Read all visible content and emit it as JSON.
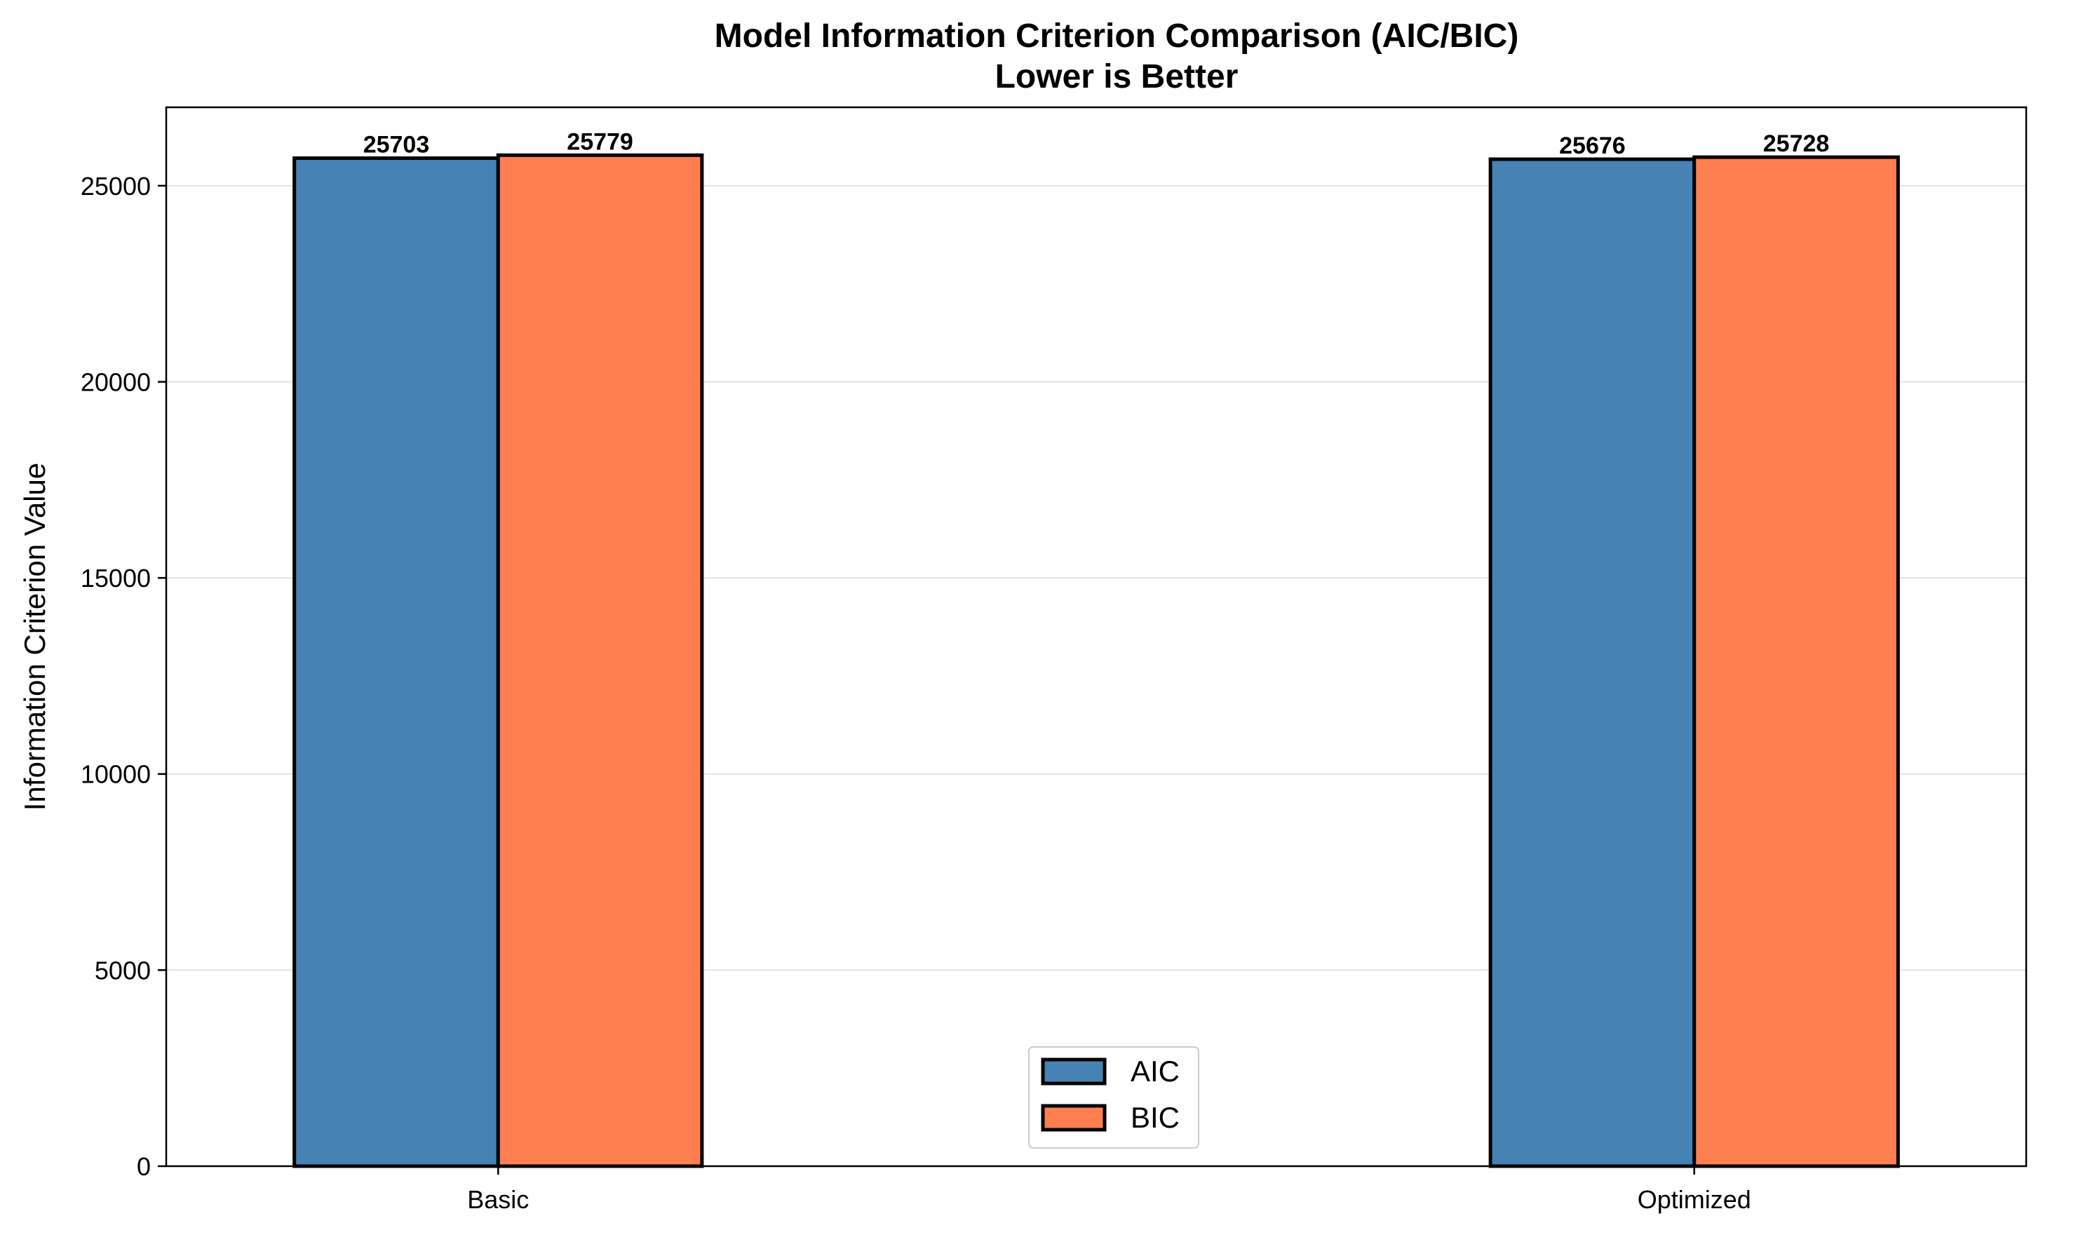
{
  "chart_data": {
    "type": "bar",
    "title": "Model Information Criterion Comparison (AIC/BIC)",
    "subtitle": "Lower is Better",
    "xlabel": "",
    "ylabel": "Information Criterion Value",
    "categories": [
      "Basic",
      "Optimized"
    ],
    "series": [
      {
        "name": "AIC",
        "values": [
          25703,
          25676
        ],
        "color": "#4682b4"
      },
      {
        "name": "BIC",
        "values": [
          25779,
          25728
        ],
        "color": "#ff7f50"
      }
    ],
    "ylim": [
      0,
      27000
    ],
    "yticks": [
      0,
      5000,
      10000,
      15000,
      20000,
      25000
    ],
    "grid": "y",
    "legend_position": "bottom-center"
  }
}
